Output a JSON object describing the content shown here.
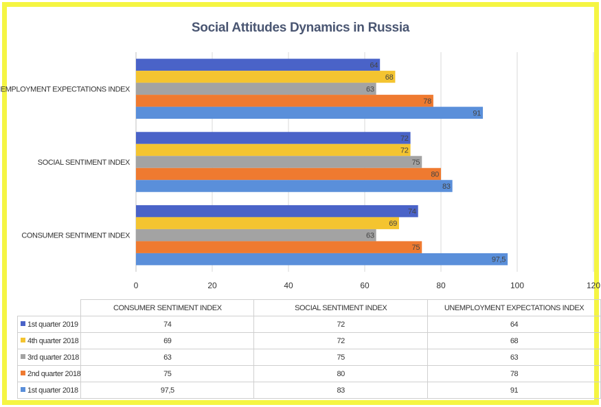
{
  "chart_data": {
    "type": "bar",
    "orientation": "horizontal",
    "title": "Social Attitudes Dynamics in Russia",
    "categories": [
      "CONSUMER SENTIMENT INDEX",
      "SOCIAL SENTIMENT INDEX",
      "UNEMPLOYMENT EXPECTATIONS INDEX"
    ],
    "series": [
      {
        "name": "1st quarter 2019",
        "color": "#4a63c8",
        "values": [
          74,
          72,
          64
        ],
        "labels": [
          "74",
          "72",
          "64"
        ]
      },
      {
        "name": "4th quarter 2018",
        "color": "#f4c430",
        "values": [
          69,
          72,
          68
        ],
        "labels": [
          "69",
          "72",
          "68"
        ]
      },
      {
        "name": "3rd quarter 2018",
        "color": "#a3a3a3",
        "values": [
          63,
          75,
          63
        ],
        "labels": [
          "63",
          "75",
          "63"
        ]
      },
      {
        "name": "2nd quarter 2018",
        "color": "#ef7a30",
        "values": [
          75,
          80,
          78
        ],
        "labels": [
          "75",
          "80",
          "78"
        ]
      },
      {
        "name": "1st quarter 2018",
        "color": "#5a8fda",
        "values": [
          97.5,
          83,
          91
        ],
        "labels": [
          "97,5",
          "83",
          "91"
        ]
      }
    ],
    "xlim": [
      0,
      120
    ],
    "xticks": [
      "0",
      "20",
      "40",
      "60",
      "80",
      "100",
      "120"
    ],
    "grid": true,
    "legend": "data table below chart"
  },
  "colors": {
    "frame": "#f5f542",
    "title": "#4a5672",
    "grid": "#d9d9d9"
  }
}
